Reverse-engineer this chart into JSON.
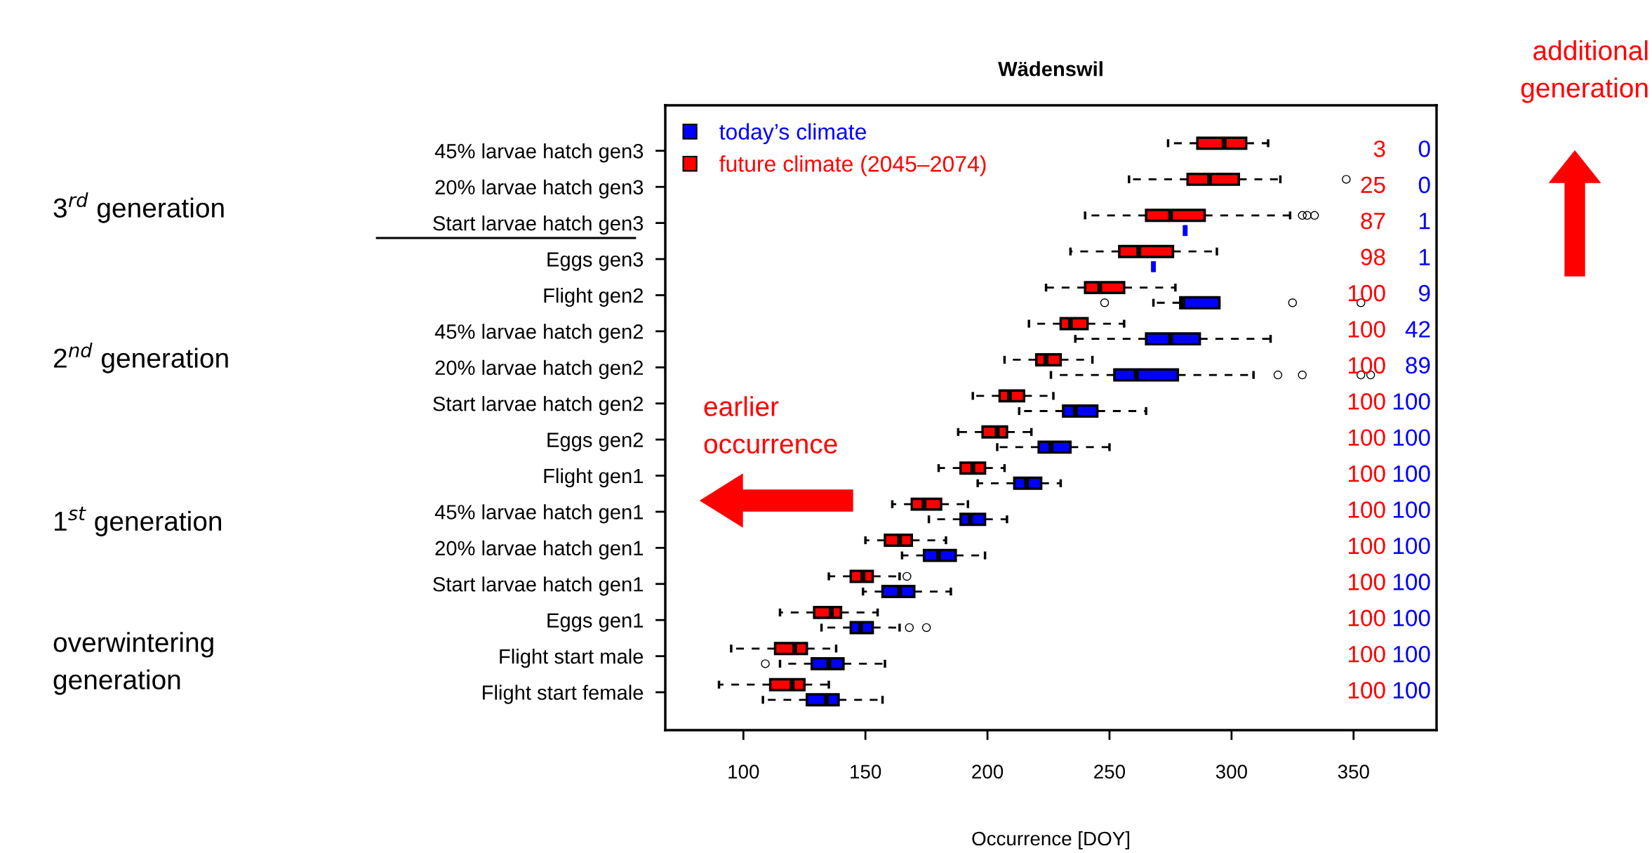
{
  "chart_data": {
    "type": "box",
    "orientation": "horizontal",
    "title": "Wädenswil",
    "xlabel": "Occurrence [DOY]",
    "categories": [
      "45% larvae hatch gen3",
      "20% larvae hatch gen3",
      "Start larvae hatch gen3",
      "Eggs gen3",
      "Flight gen2",
      "45% larvae hatch gen2",
      "20% larvae hatch gen2",
      "Start larvae hatch gen2",
      "Eggs gen2",
      "Flight gen1",
      "45% larvae hatch gen1",
      "20% larvae hatch gen1",
      "Start larvae hatch gen1",
      "Eggs gen1",
      "Flight start male",
      "Flight start female"
    ],
    "series": [
      {
        "name": "future climate (2045–2074)",
        "color": "#ff0000",
        "value_labels": [
          "3",
          "25",
          "87",
          "98",
          "100",
          "100",
          "100",
          "100",
          "100",
          "100",
          "100",
          "100",
          "100",
          "100",
          "100",
          "100"
        ],
        "boxes": [
          {
            "low": 274,
            "q1": 286,
            "median": 297,
            "q3": 306,
            "high": 315
          },
          {
            "low": 258,
            "q1": 282,
            "median": 291,
            "q3": 303,
            "high": 320,
            "outliers": [
              347
            ]
          },
          {
            "low": 240,
            "q1": 265,
            "median": 275,
            "q3": 289,
            "high": 324,
            "outliers": [
              329,
              331,
              334
            ]
          },
          {
            "low": 234,
            "q1": 254,
            "median": 262,
            "q3": 276,
            "high": 294
          },
          {
            "low": 224,
            "q1": 240,
            "median": 246,
            "q3": 256,
            "high": 277
          },
          {
            "low": 217,
            "q1": 230,
            "median": 234,
            "q3": 241,
            "high": 256
          },
          {
            "low": 207,
            "q1": 220,
            "median": 224,
            "q3": 230,
            "high": 243
          },
          {
            "low": 194,
            "q1": 205,
            "median": 209,
            "q3": 215,
            "high": 227
          },
          {
            "low": 188,
            "q1": 198,
            "median": 204,
            "q3": 208,
            "high": 218
          },
          {
            "low": 180,
            "q1": 189,
            "median": 194,
            "q3": 199,
            "high": 207
          },
          {
            "low": 161,
            "q1": 169,
            "median": 174,
            "q3": 181,
            "high": 192
          },
          {
            "low": 150,
            "q1": 158,
            "median": 164,
            "q3": 169,
            "high": 183
          },
          {
            "low": 135,
            "q1": 144,
            "median": 149,
            "q3": 153,
            "high": 164,
            "outliers": [
              167
            ]
          },
          {
            "low": 115,
            "q1": 129,
            "median": 136,
            "q3": 140,
            "high": 155
          },
          {
            "low": 95,
            "q1": 113,
            "median": 121,
            "q3": 126,
            "high": 138
          },
          {
            "low": 90,
            "q1": 111,
            "median": 120,
            "q3": 125,
            "high": 135
          }
        ]
      },
      {
        "name": "today’s climate",
        "color": "#0000ff",
        "value_labels": [
          "0",
          "0",
          "1",
          "1",
          "9",
          "42",
          "89",
          "100",
          "100",
          "100",
          "100",
          "100",
          "100",
          "100",
          "100",
          "100"
        ],
        "boxes": [
          null,
          null,
          {
            "low": 281,
            "q1": 281,
            "median": 281,
            "q3": 281,
            "high": 281
          },
          {
            "low": 268,
            "q1": 268,
            "median": 268,
            "q3": 268,
            "high": 268
          },
          {
            "low": 268,
            "q1": 279,
            "median": 280,
            "q3": 295,
            "high": 295,
            "outliers": [
              248,
              325,
              353
            ]
          },
          {
            "low": 236,
            "q1": 265,
            "median": 275,
            "q3": 287,
            "high": 316
          },
          {
            "low": 226,
            "q1": 252,
            "median": 261,
            "q3": 278,
            "high": 309,
            "outliers": [
              319,
              329,
              353,
              357
            ]
          },
          {
            "low": 213,
            "q1": 231,
            "median": 236,
            "q3": 245,
            "high": 265
          },
          {
            "low": 204,
            "q1": 221,
            "median": 226,
            "q3": 234,
            "high": 250
          },
          {
            "low": 196,
            "q1": 211,
            "median": 216,
            "q3": 222,
            "high": 230
          },
          {
            "low": 176,
            "q1": 189,
            "median": 193,
            "q3": 199,
            "high": 208
          },
          {
            "low": 165,
            "q1": 174,
            "median": 180,
            "q3": 187,
            "high": 199
          },
          {
            "low": 149,
            "q1": 157,
            "median": 164,
            "q3": 170,
            "high": 185
          },
          {
            "low": 132,
            "q1": 144,
            "median": 148,
            "q3": 153,
            "high": 164,
            "outliers": [
              168,
              175
            ]
          },
          {
            "low": 115,
            "q1": 128,
            "median": 135,
            "q3": 141,
            "high": 158,
            "outliers": [
              109
            ]
          },
          {
            "low": 108,
            "q1": 126,
            "median": 134,
            "q3": 139,
            "high": 157
          }
        ]
      }
    ],
    "xlim": [
      68,
      384
    ],
    "xticks": [
      100,
      150,
      200,
      250,
      300,
      350
    ],
    "legend": "top left",
    "grid": false,
    "annotations": [
      "3$^{rd}$ generation",
      "2$^{nd}$ generation",
      "1$^{st}$ generation",
      "overwintering\ngeneration",
      "earlier\noccurrence",
      "additional\ngeneration"
    ]
  }
}
